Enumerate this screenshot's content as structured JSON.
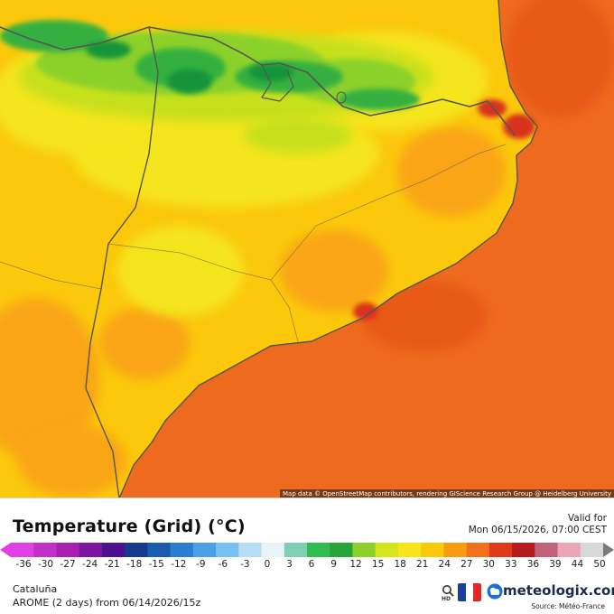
{
  "map": {
    "attribution": "Map data © OpenStreetMap contributors, rendering GIScience Research Group @ Heidelberg University",
    "colors": {
      "sea": "#ee6a1e",
      "sea_warm": "#e85a16",
      "land_base": "#fbc80c",
      "land_warm": "#f9a515",
      "land_yellow": "#f5e51a",
      "lime": "#c6e01c",
      "green_light": "#8cd12b",
      "green": "#34b041",
      "green_dark": "#17943a",
      "coast_hot": "#d9301e",
      "border": "#555555"
    }
  },
  "header": {
    "title": "Temperature (Grid) (°C)",
    "valid_label": "Valid for",
    "valid_time": "Mon 06/15/2026, 07:00 CEST"
  },
  "legend": {
    "ticks": [
      "-36",
      "-30",
      "-27",
      "-24",
      "-21",
      "-18",
      "-15",
      "-12",
      "-9",
      "-6",
      "-3",
      "0",
      "3",
      "6",
      "9",
      "12",
      "15",
      "18",
      "21",
      "24",
      "27",
      "30",
      "33",
      "36",
      "39",
      "44",
      "50"
    ],
    "stops": [
      {
        "v": -36,
        "c": "#e040e6"
      },
      {
        "v": -30,
        "c": "#c42ec9"
      },
      {
        "v": -27,
        "c": "#a81fb2"
      },
      {
        "v": -24,
        "c": "#7d169e"
      },
      {
        "v": -21,
        "c": "#4b1290"
      },
      {
        "v": -18,
        "c": "#143a8c"
      },
      {
        "v": -15,
        "c": "#1a5bb0"
      },
      {
        "v": -12,
        "c": "#2a7dd0"
      },
      {
        "v": -9,
        "c": "#4aa0e6"
      },
      {
        "v": -6,
        "c": "#78c0f0"
      },
      {
        "v": -3,
        "c": "#b5ddf5"
      },
      {
        "v": 0,
        "c": "#e8f4f8"
      },
      {
        "v": 3,
        "c": "#7fcfb4"
      },
      {
        "v": 6,
        "c": "#2ebd4e"
      },
      {
        "v": 9,
        "c": "#2aa43a"
      },
      {
        "v": 12,
        "c": "#8cd12b"
      },
      {
        "v": 15,
        "c": "#d6e41c"
      },
      {
        "v": 18,
        "c": "#f5e51a"
      },
      {
        "v": 21,
        "c": "#fbc80c"
      },
      {
        "v": 24,
        "c": "#f89a12"
      },
      {
        "v": 27,
        "c": "#f0701c"
      },
      {
        "v": 30,
        "c": "#e03a1c"
      },
      {
        "v": 33,
        "c": "#b81a1a"
      },
      {
        "v": 36,
        "c": "#c0627a"
      },
      {
        "v": 39,
        "c": "#e8a6b8"
      },
      {
        "v": 44,
        "c": "#d8d8d8"
      },
      {
        "v": 50,
        "c": "#7a7a7a"
      }
    ]
  },
  "footer": {
    "region": "Cataluña",
    "model_run": "AROME (2 days) from 06/14/2026/15z",
    "hd_label": "HD",
    "brand": "meteologix.com",
    "source": "Source: Météo-France"
  }
}
